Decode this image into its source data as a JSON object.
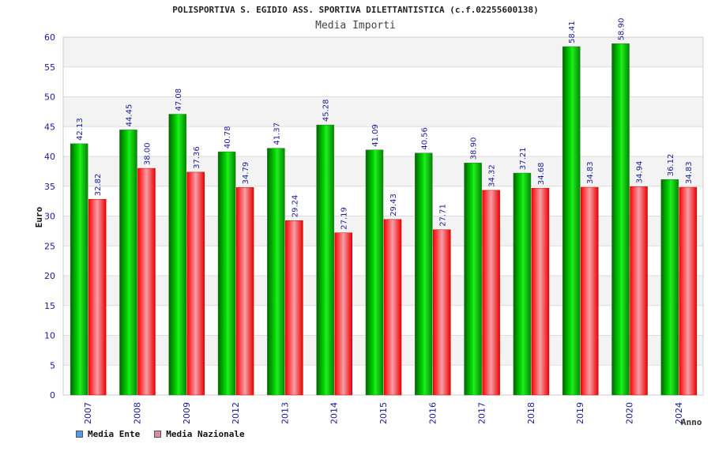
{
  "chart_data": {
    "type": "bar",
    "title": "POLISPORTIVA S. EGIDIO ASS. SPORTIVA DILETTANTISTICA (c.f.02255600138)",
    "subtitle": "Media Importi",
    "xlabel": "Anno",
    "ylabel": "Euro",
    "ylim": [
      0,
      60
    ],
    "yticks": [
      0,
      5,
      10,
      15,
      20,
      25,
      30,
      35,
      40,
      45,
      50,
      55,
      60
    ],
    "categories": [
      "2007",
      "2008",
      "2009",
      "2012",
      "2013",
      "2014",
      "2015",
      "2016",
      "2017",
      "2018",
      "2019",
      "2020",
      "2024"
    ],
    "series": [
      {
        "name": "Media Ente",
        "values": [
          42.13,
          44.45,
          47.08,
          40.78,
          41.37,
          45.28,
          41.09,
          40.56,
          38.9,
          37.21,
          58.41,
          58.9,
          36.12
        ]
      },
      {
        "name": "Media Nazionale",
        "values": [
          32.82,
          38.0,
          37.36,
          34.79,
          29.24,
          27.19,
          29.43,
          27.71,
          34.32,
          34.68,
          34.83,
          34.94,
          34.83
        ]
      }
    ],
    "value_labels": [
      [
        "42.13",
        "44.45",
        "47.08",
        "40.78",
        "41.37",
        "45.28",
        "41.09",
        "40.56",
        "38.90",
        "37.21",
        "58.41",
        "58.90",
        "36.12"
      ],
      [
        "32.82",
        "38.00",
        "37.36",
        "34.79",
        "29.24",
        "27.19",
        "29.43",
        "27.71",
        "34.32",
        "34.68",
        "34.83",
        "34.94",
        "34.83"
      ]
    ],
    "grid": true,
    "legend_position": "bottom-left",
    "colors": {
      "ente": "#00cc00",
      "nazionale": "#ee2222",
      "legend_ente": "#5599ee",
      "legend_nazionale": "#dd88aa"
    }
  }
}
